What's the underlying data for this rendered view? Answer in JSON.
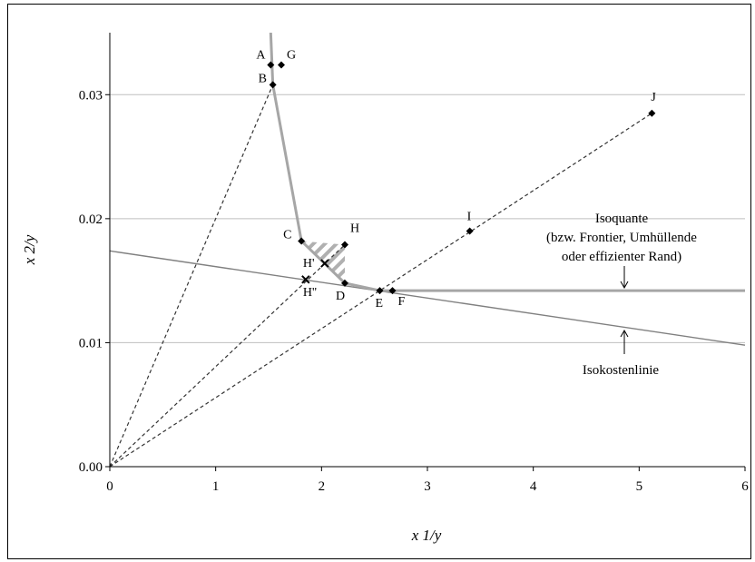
{
  "chart_data": {
    "type": "scatter",
    "xlabel": "x 1/y",
    "ylabel": "x 2/y",
    "xlim": [
      0,
      6
    ],
    "ylim": [
      0,
      0.035
    ],
    "xticks": [
      0,
      1,
      2,
      3,
      4,
      5,
      6
    ],
    "xtick_labels": [
      "0",
      "1",
      "2",
      "3",
      "4",
      "5",
      "6"
    ],
    "yticks": [
      0,
      0.01,
      0.02,
      0.03
    ],
    "ytick_labels": [
      "0.00",
      "0.01",
      "0.02",
      "0.03"
    ],
    "grid": "horizontal",
    "points": [
      {
        "label": "A",
        "x": 1.52,
        "y": 0.0324
      },
      {
        "label": "G",
        "x": 1.62,
        "y": 0.0324
      },
      {
        "label": "B",
        "x": 1.54,
        "y": 0.0308
      },
      {
        "label": "J",
        "x": 5.12,
        "y": 0.0285
      },
      {
        "label": "I",
        "x": 3.4,
        "y": 0.019
      },
      {
        "label": "C",
        "x": 1.81,
        "y": 0.0182
      },
      {
        "label": "H",
        "x": 2.22,
        "y": 0.0179
      },
      {
        "label": "H'",
        "x": 2.03,
        "y": 0.0164
      },
      {
        "label": "H''",
        "x": 1.85,
        "y": 0.0151
      },
      {
        "label": "D",
        "x": 2.22,
        "y": 0.0148
      },
      {
        "label": "E",
        "x": 2.55,
        "y": 0.0142
      },
      {
        "label": "F",
        "x": 2.67,
        "y": 0.0142
      }
    ],
    "isoquant": {
      "name": "Isoquante",
      "x": [
        1.52,
        1.54,
        1.81,
        2.22,
        2.55,
        6.0
      ],
      "y": [
        0.035,
        0.0308,
        0.0182,
        0.0148,
        0.0142,
        0.0142
      ]
    },
    "isocost": {
      "name": "Isokostenlinie",
      "x": [
        0,
        6
      ],
      "y": [
        0.0174,
        0.0098
      ]
    },
    "rays": [
      {
        "x": [
          0,
          1.54
        ],
        "y": [
          0,
          0.0308
        ]
      },
      {
        "x": [
          0,
          2.22
        ],
        "y": [
          0,
          0.0179
        ]
      },
      {
        "x": [
          0,
          5.12
        ],
        "y": [
          0,
          0.0285
        ]
      }
    ],
    "annotations": {
      "isoquant_text": [
        "Isoquante",
        "(bzw. Frontier, Umhüllende",
        "oder effizienter Rand)"
      ],
      "isocost_text": "Isokostenlinie"
    },
    "colors": {
      "isoquant": "#a6a6a6",
      "isocost": "#808080",
      "ray": "#333333",
      "grid": "#bfbfbf",
      "marker": "#000000"
    }
  }
}
